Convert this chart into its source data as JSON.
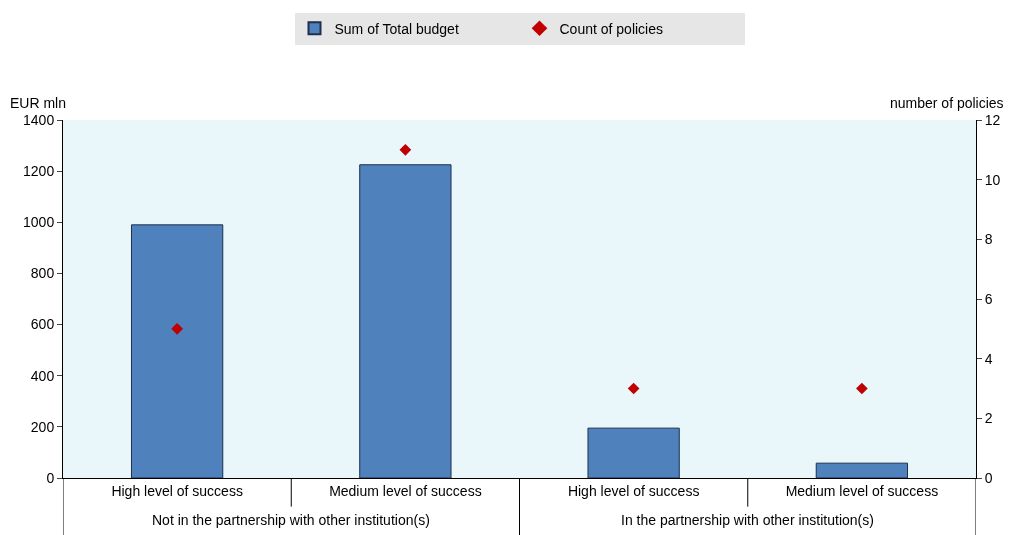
{
  "chart_data": {
    "type": "bar",
    "categories": [
      "High level of success",
      "Medium level of success",
      "High level of success",
      "Medium level of success"
    ],
    "series": [
      {
        "name": "Sum of Total budget",
        "color": "#4f81bd",
        "values": [
          990,
          1225,
          195,
          58
        ]
      },
      {
        "name": "Count of policies",
        "type": "scatter",
        "axis": "y2",
        "color": "#c00000",
        "marker": "diamond",
        "values": [
          5,
          11,
          3,
          3
        ]
      }
    ],
    "ylabel": "EUR mln",
    "y2label": "number of policies",
    "ylim": [
      0,
      1400
    ],
    "yticks": [
      0,
      200,
      400,
      600,
      800,
      1000,
      1200,
      1400
    ],
    "y2lim": [
      0,
      12
    ],
    "y2ticks": [
      0,
      2,
      4,
      6,
      8,
      10,
      12
    ],
    "annotations": [
      "Not in the partnership with other institution(s)",
      "In the partnership with other institution(s)"
    ],
    "grid": false,
    "legend": "top"
  }
}
